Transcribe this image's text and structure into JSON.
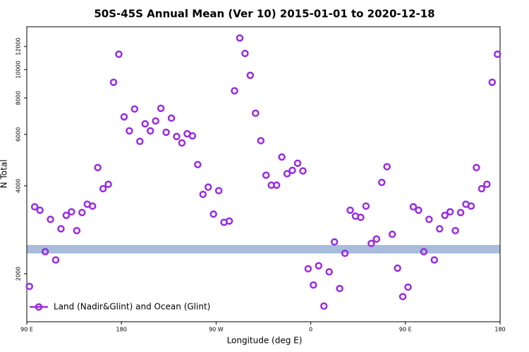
{
  "chart_data": {
    "type": "scatter",
    "title": "50S-45S Annual Mean (Ver 10)   2015-01-01 to 2020-12-18",
    "xlabel": "Longitude (deg E)",
    "ylabel": "N Total",
    "log_y": true,
    "grid": false,
    "legend": "lower left",
    "xlim": [
      90,
      540
    ],
    "ylim": [
      1370,
      14020
    ],
    "xticks": [
      {
        "value": 90,
        "label": "90 E"
      },
      180,
      {
        "value": 270,
        "label": "90 W"
      },
      {
        "value": 360,
        "label": "0"
      },
      {
        "value": 450,
        "label": "90 E"
      },
      {
        "value": 540,
        "label": "180"
      }
    ],
    "yticks": [
      2000,
      4000,
      6000,
      8000,
      10000,
      12000
    ],
    "series": [
      {
        "name": "Land (Nadir&Glint) and Ocean (Glint)",
        "color": "#9a2be2",
        "x": [
          92.5,
          97.5,
          102.5,
          107.5,
          112.5,
          117.5,
          122.5,
          127.5,
          132.5,
          137.5,
          142.5,
          147.5,
          152.5,
          157.5,
          162.5,
          167.5,
          172.5,
          177.5,
          182.5,
          187.5,
          192.5,
          197.5,
          202.5,
          207.5,
          212.5,
          217.5,
          222.5,
          227.5,
          232.5,
          237.5,
          242.5,
          247.5,
          252.5,
          257.5,
          262.5,
          267.5,
          272.5,
          277.5,
          282.5,
          287.5,
          292.5,
          297.5,
          302.5,
          307.5,
          312.5,
          317.5,
          322.5,
          327.5,
          332.5,
          337.5,
          342.5,
          347.5,
          352.5,
          357.5,
          362.5,
          367.5,
          372.5,
          377.5,
          382.5,
          387.5,
          392.5,
          397.5,
          402.5,
          407.5,
          412.5,
          417.5,
          422.5,
          427.5,
          432.5,
          437.5,
          442.5,
          447.5,
          452.5,
          457.5,
          462.5,
          467.5,
          472.5,
          477.5,
          482.5,
          487.5,
          492.5,
          497.5,
          502.5,
          507.5,
          512.5,
          517.5,
          522.5,
          527.5,
          532.5,
          537.5
        ],
        "values": [
          1810,
          3390,
          3300,
          2380,
          3070,
          2230,
          2850,
          3170,
          3260,
          2810,
          3240,
          3460,
          3410,
          4620,
          3910,
          4050,
          9050,
          11290,
          6890,
          6170,
          7330,
          5680,
          6520,
          6170,
          6670,
          7370,
          6100,
          6820,
          5900,
          5610,
          6030,
          5930,
          4730,
          3740,
          3960,
          3200,
          3850,
          3000,
          3030,
          8460,
          12830,
          11360,
          9560,
          7090,
          5710,
          4350,
          4020,
          4020,
          5020,
          4400,
          4520,
          4780,
          4500,
          2080,
          1830,
          2130,
          1550,
          2030,
          2570,
          1780,
          2350,
          3300,
          3150,
          3120,
          3410,
          2540,
          2630,
          4110,
          4650,
          2730,
          2090,
          1670,
          1800,
          3390,
          3300,
          2380,
          3070,
          2230,
          2850,
          3170,
          3260,
          2810,
          3240,
          3460,
          3410,
          4620,
          3910,
          4050,
          9050,
          11290
        ]
      }
    ]
  }
}
